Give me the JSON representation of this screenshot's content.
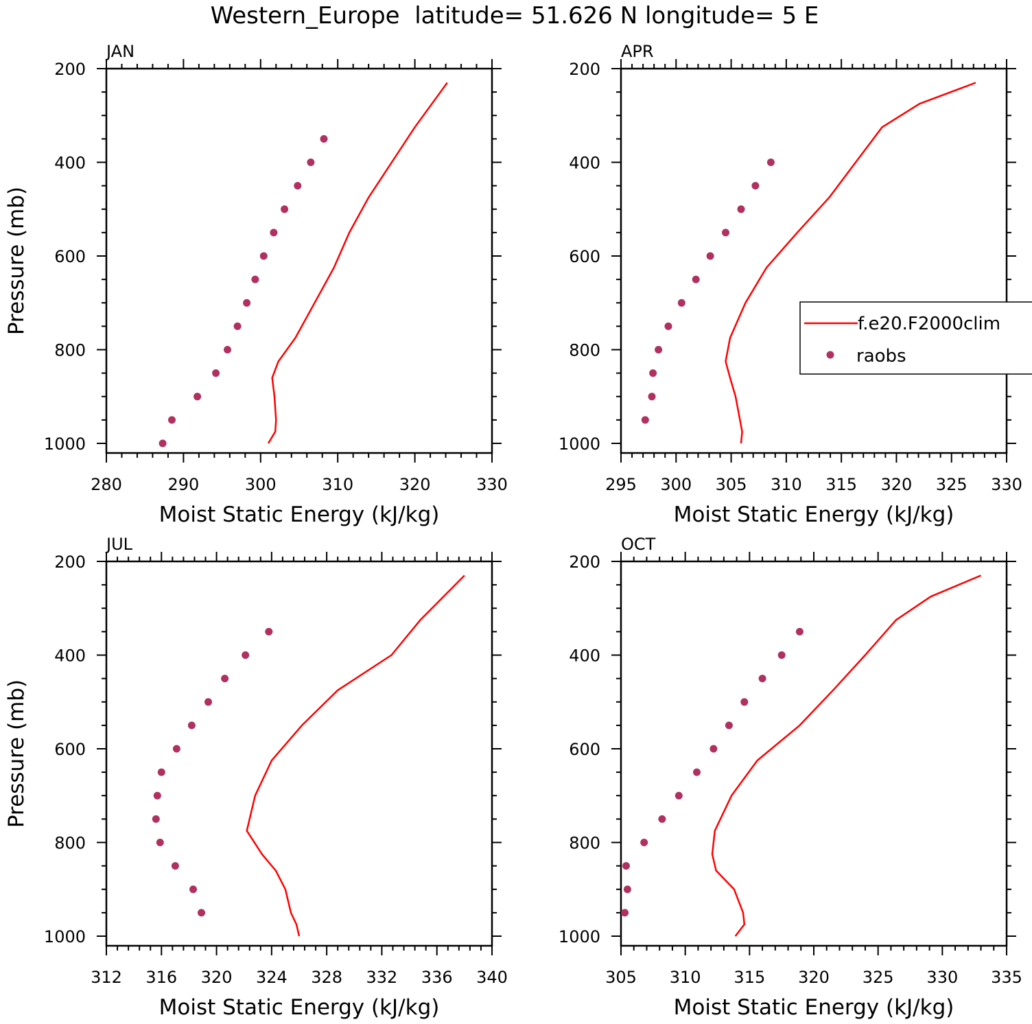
{
  "figure_title": "Western_Europe  latitude= 51.626 N longitude= 5 E",
  "colors": {
    "model": "#ff0000",
    "obs": "#b03060"
  },
  "legend": {
    "model_label": "f.e20.F2000clim",
    "obs_label": "raobs"
  },
  "chart_data": [
    {
      "type": "line",
      "title": "JAN",
      "xlabel": "Moist Static Energy (kJ/kg)",
      "ylabel": "Pressure (mb)",
      "xlim": [
        280,
        330
      ],
      "ylim": [
        1000,
        200
      ],
      "xticks": [
        280,
        290,
        300,
        310,
        320,
        330
      ],
      "yticks": [
        200,
        400,
        600,
        800,
        1000
      ],
      "series": [
        {
          "name": "f.e20.F2000clim",
          "kind": "line",
          "x": [
            301.0,
            301.9,
            302.0,
            301.8,
            301.5,
            302.3,
            304.5,
            307.0,
            309.5,
            311.5,
            314.0,
            317.0,
            320.0,
            324.2
          ],
          "y": [
            1000,
            975,
            950,
            900,
            860,
            825,
            775,
            700,
            625,
            550,
            475,
            400,
            325,
            230
          ]
        },
        {
          "name": "raobs",
          "kind": "points",
          "x": [
            287.3,
            288.5,
            291.8,
            294.2,
            295.7,
            297.0,
            298.2,
            299.3,
            300.4,
            301.7,
            303.1,
            304.8,
            306.5,
            308.2
          ],
          "y": [
            1000,
            950,
            900,
            850,
            800,
            750,
            700,
            650,
            600,
            550,
            500,
            450,
            400,
            350
          ]
        }
      ]
    },
    {
      "type": "line",
      "title": "APR",
      "xlabel": "Moist Static Energy (kJ/kg)",
      "ylabel": "",
      "xlim": [
        295,
        330
      ],
      "ylim": [
        1000,
        200
      ],
      "xticks": [
        295,
        300,
        305,
        310,
        315,
        320,
        325,
        330
      ],
      "yticks": [
        200,
        400,
        600,
        800,
        1000
      ],
      "series": [
        {
          "name": "f.e20.F2000clim",
          "kind": "line",
          "x": [
            305.9,
            306.0,
            305.8,
            305.4,
            304.9,
            304.5,
            304.9,
            306.3,
            308.2,
            311.0,
            313.9,
            316.3,
            318.7,
            322.1,
            327.2
          ],
          "y": [
            1000,
            975,
            950,
            900,
            860,
            825,
            775,
            700,
            625,
            550,
            475,
            400,
            325,
            275,
            230
          ]
        },
        {
          "name": "raobs",
          "kind": "points",
          "x": [
            297.2,
            297.8,
            297.9,
            298.4,
            299.3,
            300.5,
            301.8,
            303.1,
            304.5,
            305.9,
            307.2,
            308.6
          ],
          "y": [
            950,
            900,
            850,
            800,
            750,
            700,
            650,
            600,
            550,
            500,
            450,
            400
          ]
        }
      ]
    },
    {
      "type": "line",
      "title": "JUL",
      "xlabel": "Moist Static Energy (kJ/kg)",
      "ylabel": "Pressure (mb)",
      "xlim": [
        312,
        340
      ],
      "ylim": [
        1000,
        200
      ],
      "xticks": [
        312,
        316,
        320,
        324,
        328,
        332,
        336,
        340
      ],
      "yticks": [
        200,
        400,
        600,
        800,
        1000
      ],
      "series": [
        {
          "name": "f.e20.F2000clim",
          "kind": "line",
          "x": [
            326.0,
            325.8,
            325.4,
            325.0,
            324.3,
            323.3,
            322.2,
            322.8,
            324.0,
            326.2,
            328.8,
            332.7,
            334.8,
            338.0
          ],
          "y": [
            1000,
            975,
            950,
            900,
            860,
            825,
            775,
            700,
            625,
            550,
            475,
            400,
            325,
            230
          ]
        },
        {
          "name": "raobs",
          "kind": "points",
          "x": [
            318.9,
            318.3,
            317.0,
            315.9,
            315.6,
            315.7,
            316.0,
            317.1,
            318.2,
            319.4,
            320.6,
            322.1,
            323.8
          ],
          "y": [
            950,
            900,
            850,
            800,
            750,
            700,
            650,
            600,
            550,
            500,
            450,
            400,
            350
          ]
        }
      ]
    },
    {
      "type": "line",
      "title": "OCT",
      "xlabel": "Moist Static Energy (kJ/kg)",
      "ylabel": "",
      "xlim": [
        305,
        335
      ],
      "ylim": [
        1000,
        200
      ],
      "xticks": [
        305,
        310,
        315,
        320,
        325,
        330,
        335
      ],
      "yticks": [
        200,
        400,
        600,
        800,
        1000
      ],
      "series": [
        {
          "name": "f.e20.F2000clim",
          "kind": "line",
          "x": [
            313.9,
            314.6,
            314.5,
            313.8,
            312.4,
            312.1,
            312.3,
            313.6,
            315.6,
            318.9,
            321.5,
            324.0,
            326.4,
            329.1,
            333.0
          ],
          "y": [
            1000,
            975,
            950,
            900,
            860,
            825,
            775,
            700,
            625,
            550,
            475,
            400,
            325,
            275,
            230
          ]
        },
        {
          "name": "raobs",
          "kind": "points",
          "x": [
            305.3,
            305.5,
            305.4,
            306.8,
            308.2,
            309.5,
            310.9,
            312.2,
            313.4,
            314.6,
            316.0,
            317.5,
            318.9
          ],
          "y": [
            950,
            900,
            850,
            800,
            750,
            700,
            650,
            600,
            550,
            500,
            450,
            400,
            350
          ]
        }
      ]
    }
  ]
}
